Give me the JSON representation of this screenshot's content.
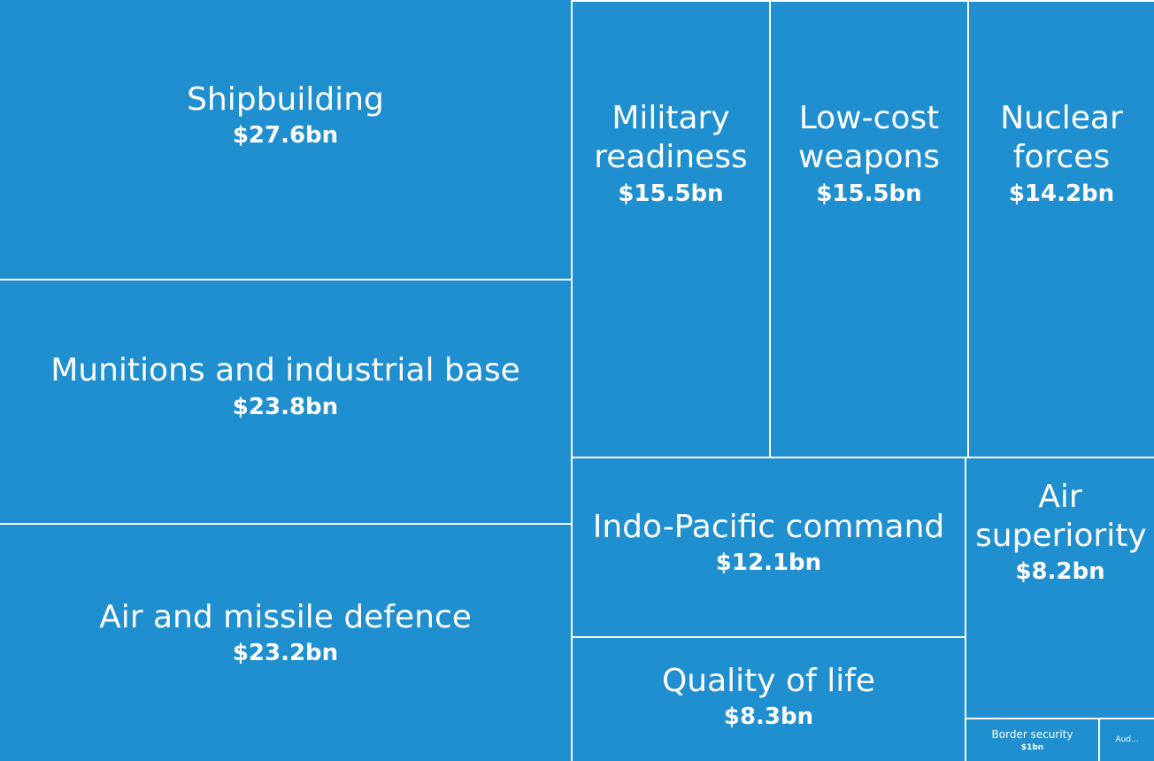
{
  "chart_data": {
    "type": "treemap",
    "color": "#1f8fd0",
    "items": [
      {
        "label": "Shipbuilding",
        "value_label": "$27.6bn",
        "value": 27.6
      },
      {
        "label": "Munitions and industrial base",
        "value_label": "$23.8bn",
        "value": 23.8
      },
      {
        "label": "Air and missile defence",
        "value_label": "$23.2bn",
        "value": 23.2
      },
      {
        "label": "Military readiness",
        "value_label": "$15.5bn",
        "value": 15.5
      },
      {
        "label": "Low-cost weapons",
        "value_label": "$15.5bn",
        "value": 15.5
      },
      {
        "label": "Nuclear forces",
        "value_label": "$14.2bn",
        "value": 14.2
      },
      {
        "label": "Indo-Pacific command",
        "value_label": "$12.1bn",
        "value": 12.1
      },
      {
        "label": "Quality of life",
        "value_label": "$8.3bn",
        "value": 8.3
      },
      {
        "label": "Air superiority",
        "value_label": "$8.2bn",
        "value": 8.2
      },
      {
        "label": "Border security",
        "value_label": "$1bn",
        "value": 1
      },
      {
        "label": "Aud...",
        "value_label": "",
        "value": null
      }
    ]
  }
}
